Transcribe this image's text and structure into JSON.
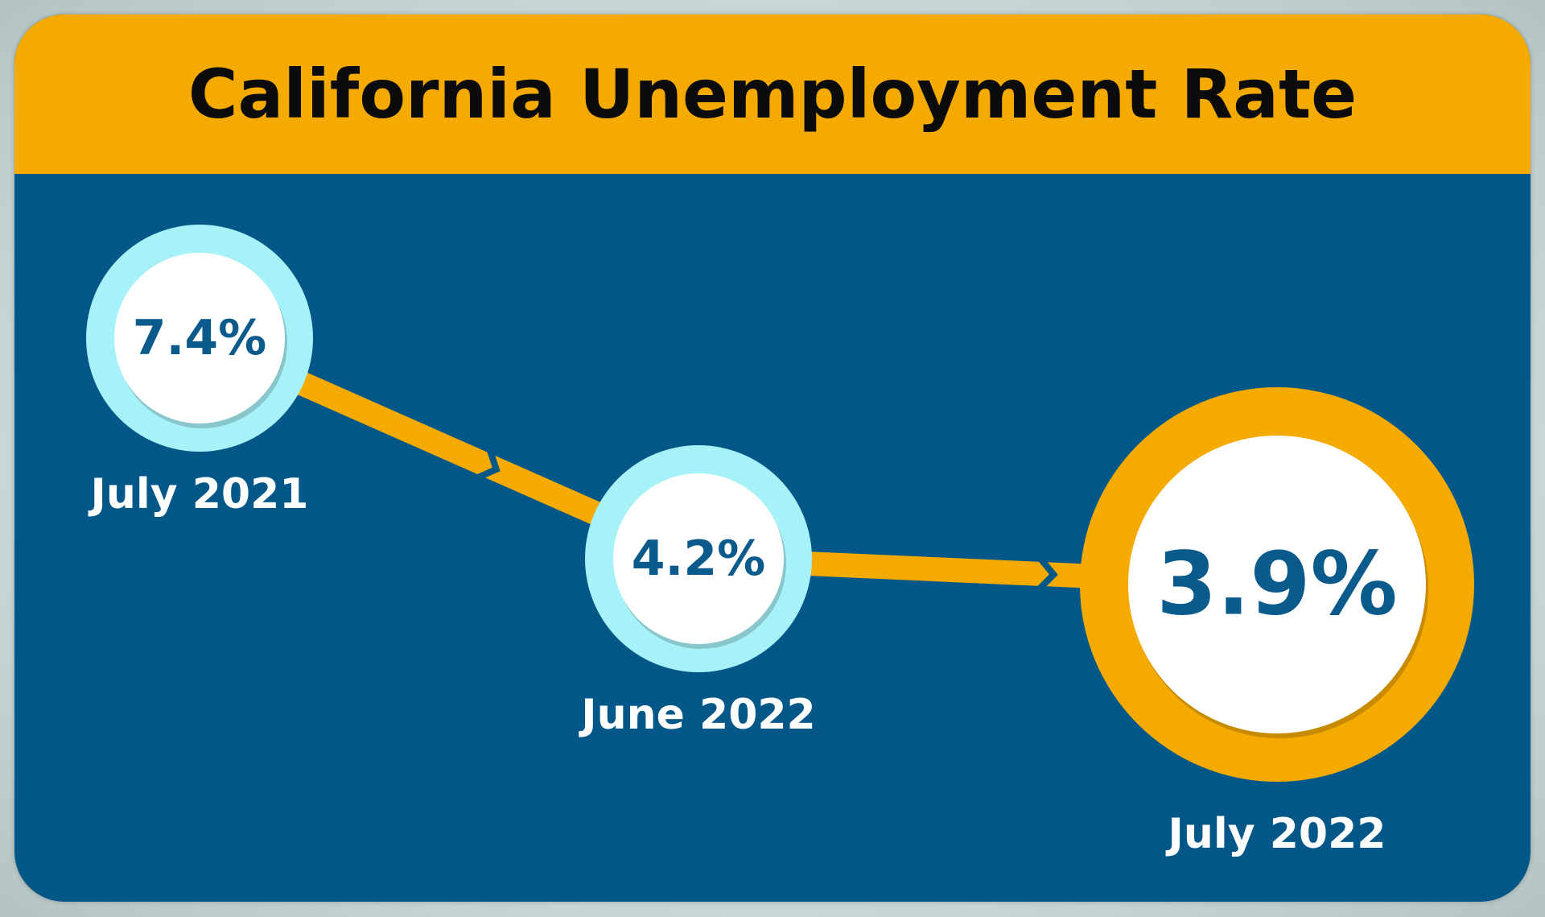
{
  "header": {
    "title": "California Unemployment Rate"
  },
  "colors": {
    "background": "#015787",
    "header": "#f5aa00",
    "accent": "#f5aa00",
    "ring_past": "#a6f2f8",
    "value_text": "#0a5a8c",
    "date_text": "#ffffff"
  },
  "chart_data": {
    "type": "line",
    "title": "California Unemployment Rate",
    "categories": [
      "July 2021",
      "June 2022",
      "July 2022"
    ],
    "series": [
      {
        "values": [
          7.4,
          4.2,
          3.9
        ],
        "labels": [
          "7.4%",
          "4.2%",
          "3.9%"
        ]
      }
    ],
    "highlight": "July 2022",
    "grid": false,
    "legend": "none"
  }
}
